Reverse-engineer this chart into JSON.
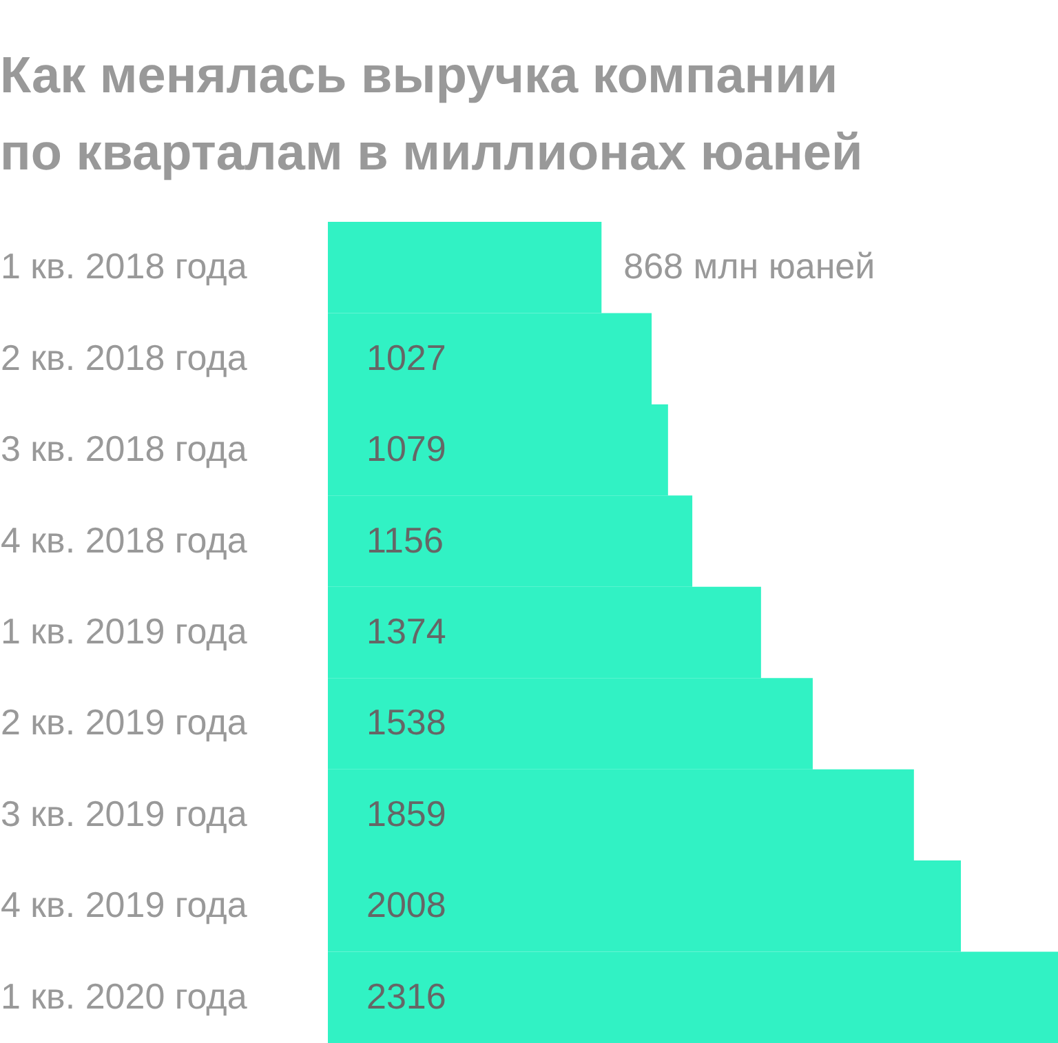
{
  "chart_data": {
    "type": "bar",
    "orientation": "horizontal",
    "title": "Как менялась выручка компании по кварталам в миллионах юаней",
    "categories": [
      "1 кв. 2018 года",
      "2 кв. 2018 года",
      "3 кв. 2018 года",
      "4 кв. 2018 года",
      "1 кв. 2019 года",
      "2 кв. 2019 года",
      "3 кв. 2019 года",
      "4 кв. 2019 года",
      "1 кв. 2020 года"
    ],
    "values": [
      868,
      1027,
      1079,
      1156,
      1374,
      1538,
      1859,
      2008,
      2316
    ],
    "value_labels": [
      "868 млн юаней",
      "1027",
      "1079",
      "1156",
      "1374",
      "1538",
      "1859",
      "2008",
      "2316"
    ],
    "color": "#31f2c4"
  }
}
